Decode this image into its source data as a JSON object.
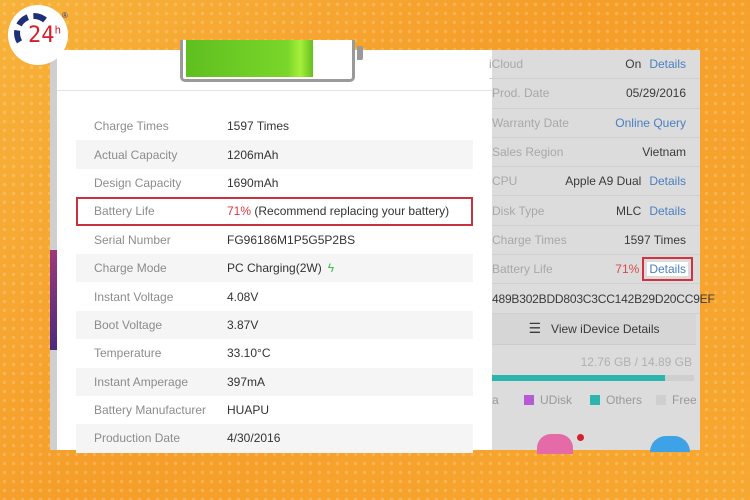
{
  "battery": {
    "level_percent": 71,
    "fill_color": "#6cc926"
  },
  "rows": [
    {
      "label": "Charge Times",
      "value": "1597 Times"
    },
    {
      "label": "Actual Capacity",
      "value": "1206mAh"
    },
    {
      "label": "Design Capacity",
      "value": "1690mAh"
    },
    {
      "label": "Battery Life",
      "value_pct": "71%",
      "value_note": " (Recommend replacing your battery)"
    },
    {
      "label": "Serial Number",
      "value": "FG96186M1P5G5P2BS"
    },
    {
      "label": "Charge Mode",
      "value": "PC Charging(2W)",
      "icon": "lightning-icon"
    },
    {
      "label": "Instant Voltage",
      "value": "4.08V"
    },
    {
      "label": "Boot Voltage",
      "value": "3.87V"
    },
    {
      "label": "Temperature",
      "value": "33.10°C"
    },
    {
      "label": "Instant Amperage",
      "value": "397mA"
    },
    {
      "label": "Battery Manufacturer",
      "value": "HUAPU"
    },
    {
      "label": "Production Date",
      "value": "4/30/2016"
    }
  ],
  "right": {
    "icloud": {
      "label": "iCloud",
      "value": "On",
      "link": "Details"
    },
    "prod_date": {
      "label": "Prod. Date",
      "value": "05/29/2016"
    },
    "warranty": {
      "label": "Warranty Date",
      "link": "Online Query"
    },
    "region": {
      "label": "Sales Region",
      "value": "Vietnam"
    },
    "cpu": {
      "label": "CPU",
      "value": "Apple A9 Dual",
      "link": "Details"
    },
    "disk": {
      "label": "Disk Type",
      "value": "MLC",
      "link": "Details"
    },
    "charge": {
      "label": "Charge Times",
      "value": "1597 Times"
    },
    "battery": {
      "label": "Battery Life",
      "value": "71%",
      "link": "Details"
    },
    "udid": "489B302BDD803C3CC142B29D20CC9EF",
    "view_button": "View iDevice Details",
    "storage": "12.76 GB / 14.89 GB",
    "storage_used_fraction": 0.857,
    "legend": [
      {
        "label": "a",
        "color": "#dcdcdc"
      },
      {
        "label": "UDisk",
        "color": "#b65bd6"
      },
      {
        "label": "Others",
        "color": "#2bb5ad"
      },
      {
        "label": "Free",
        "color": "#cfcfcf"
      }
    ]
  },
  "logo": {
    "text": "24",
    "sup": "h",
    "reg": "®"
  },
  "accent": {
    "highlight": "#c8323f",
    "link": "#4a7fc0",
    "warning": "#e0353f"
  }
}
